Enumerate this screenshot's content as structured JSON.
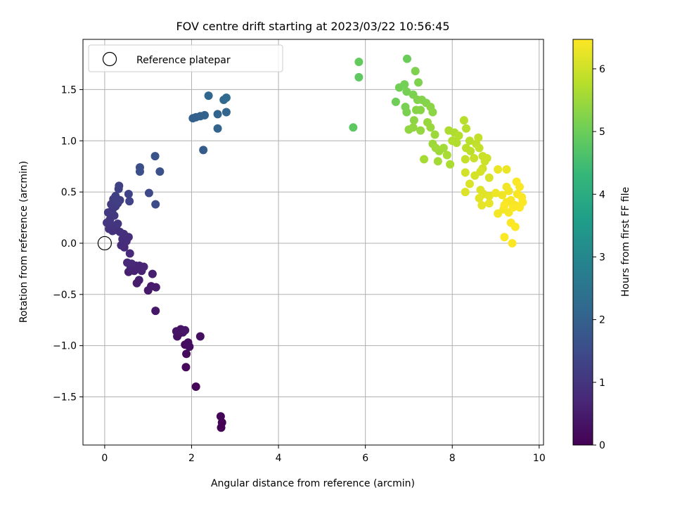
{
  "chart_data": {
    "type": "scatter",
    "title": "FOV centre drift starting at 2023/03/22 10:56:45",
    "xlabel": "Angular distance from reference (arcmin)",
    "ylabel": "Rotation from reference (arcmin)",
    "xlim": [
      -0.5,
      10.1
    ],
    "ylim": [
      -1.97,
      1.99
    ],
    "x_ticks": [
      0,
      2,
      4,
      6,
      8,
      10
    ],
    "y_ticks": [
      -1.5,
      -1.0,
      -0.5,
      0.0,
      0.5,
      1.0,
      1.5
    ],
    "x_tick_labels": [
      "0",
      "2",
      "4",
      "6",
      "8",
      "10"
    ],
    "y_tick_labels": [
      "−1.5",
      "−1.0",
      "−0.5",
      "0.0",
      "0.5",
      "1.0",
      "1.5"
    ],
    "grid": true,
    "legend": {
      "placement": "top-left",
      "entries": [
        {
          "label": "Reference platepar",
          "marker": "open-circle"
        }
      ]
    },
    "reference_point": {
      "x": 0.0,
      "y": 0.0
    },
    "colorbar": {
      "label": "Hours from first FF file",
      "colormap": "viridis",
      "min": 0.0,
      "max": 6.47,
      "ticks": [
        0,
        1,
        2,
        3,
        4,
        5,
        6
      ],
      "tick_labels": [
        "0",
        "1",
        "2",
        "3",
        "4",
        "5",
        "6"
      ]
    },
    "colormap_stops": [
      "#440154",
      "#482878",
      "#3e4989",
      "#31688e",
      "#26828e",
      "#1f9e89",
      "#35b779",
      "#6ece58",
      "#b5de2b",
      "#fde725"
    ],
    "grid_color": "#b0b0b0",
    "series": [
      {
        "points": [
          {
            "x": 2.68,
            "y": -1.8,
            "c": 0.02
          },
          {
            "x": 2.7,
            "y": -1.75,
            "c": 0.04
          },
          {
            "x": 2.67,
            "y": -1.69,
            "c": 0.06
          },
          {
            "x": 2.1,
            "y": -1.4,
            "c": 0.1
          },
          {
            "x": 1.87,
            "y": -1.21,
            "c": 0.13
          },
          {
            "x": 1.88,
            "y": -1.08,
            "c": 0.16
          },
          {
            "x": 1.85,
            "y": -0.99,
            "c": 0.19
          },
          {
            "x": 1.92,
            "y": -0.97,
            "c": 0.21
          },
          {
            "x": 1.95,
            "y": -1.01,
            "c": 0.23
          },
          {
            "x": 2.2,
            "y": -0.91,
            "c": 0.25
          },
          {
            "x": 1.67,
            "y": -0.91,
            "c": 0.27
          },
          {
            "x": 1.72,
            "y": -0.88,
            "c": 0.29
          },
          {
            "x": 1.8,
            "y": -0.87,
            "c": 0.31
          },
          {
            "x": 1.65,
            "y": -0.86,
            "c": 0.33
          },
          {
            "x": 1.75,
            "y": -0.84,
            "c": 0.35
          },
          {
            "x": 1.85,
            "y": -0.85,
            "c": 0.37
          },
          {
            "x": 1.17,
            "y": -0.66,
            "c": 0.42
          },
          {
            "x": 1.0,
            "y": -0.46,
            "c": 0.46
          },
          {
            "x": 1.07,
            "y": -0.42,
            "c": 0.48
          },
          {
            "x": 1.18,
            "y": -0.43,
            "c": 0.5
          },
          {
            "x": 0.74,
            "y": -0.39,
            "c": 0.52
          },
          {
            "x": 0.79,
            "y": -0.36,
            "c": 0.54
          },
          {
            "x": 1.1,
            "y": -0.3,
            "c": 0.56
          },
          {
            "x": 0.55,
            "y": -0.28,
            "c": 0.58
          },
          {
            "x": 0.68,
            "y": -0.27,
            "c": 0.6
          },
          {
            "x": 0.85,
            "y": -0.27,
            "c": 0.62
          },
          {
            "x": 0.6,
            "y": -0.24,
            "c": 0.64
          },
          {
            "x": 0.72,
            "y": -0.22,
            "c": 0.66
          },
          {
            "x": 0.8,
            "y": -0.22,
            "c": 0.68
          },
          {
            "x": 0.9,
            "y": -0.23,
            "c": 0.7
          },
          {
            "x": 0.52,
            "y": -0.19,
            "c": 0.72
          },
          {
            "x": 0.62,
            "y": -0.2,
            "c": 0.74
          },
          {
            "x": 0.58,
            "y": -0.1,
            "c": 0.76
          },
          {
            "x": 0.45,
            "y": -0.04,
            "c": 0.78
          },
          {
            "x": 0.38,
            "y": -0.02,
            "c": 0.8
          },
          {
            "x": 0.5,
            "y": 0.02,
            "c": 0.82
          },
          {
            "x": 0.41,
            "y": 0.04,
            "c": 0.84
          },
          {
            "x": 0.55,
            "y": 0.06,
            "c": 0.86
          },
          {
            "x": 0.44,
            "y": 0.09,
            "c": 0.88
          },
          {
            "x": 0.35,
            "y": 0.11,
            "c": 0.9
          },
          {
            "x": 0.28,
            "y": 0.13,
            "c": 0.92
          },
          {
            "x": 0.18,
            "y": 0.12,
            "c": 0.94
          },
          {
            "x": 0.1,
            "y": 0.14,
            "c": 0.96
          },
          {
            "x": 0.2,
            "y": 0.17,
            "c": 0.98
          },
          {
            "x": 0.3,
            "y": 0.19,
            "c": 1.0
          },
          {
            "x": 0.05,
            "y": 0.2,
            "c": 1.02
          },
          {
            "x": 0.12,
            "y": 0.23,
            "c": 1.04
          },
          {
            "x": 0.22,
            "y": 0.27,
            "c": 1.06
          },
          {
            "x": 0.08,
            "y": 0.3,
            "c": 1.08
          },
          {
            "x": 0.18,
            "y": 0.33,
            "c": 1.1
          },
          {
            "x": 0.25,
            "y": 0.36,
            "c": 1.12
          },
          {
            "x": 0.15,
            "y": 0.38,
            "c": 1.14
          },
          {
            "x": 0.3,
            "y": 0.39,
            "c": 1.16
          },
          {
            "x": 0.2,
            "y": 0.43,
            "c": 1.18
          },
          {
            "x": 0.35,
            "y": 0.42,
            "c": 1.2
          },
          {
            "x": 0.25,
            "y": 0.46,
            "c": 1.22
          },
          {
            "x": 0.32,
            "y": 0.53,
            "c": 1.24
          },
          {
            "x": 0.33,
            "y": 0.56,
            "c": 1.26
          },
          {
            "x": 0.55,
            "y": 0.48,
            "c": 1.3
          },
          {
            "x": 0.57,
            "y": 0.41,
            "c": 1.32
          },
          {
            "x": 1.02,
            "y": 0.49,
            "c": 1.46
          },
          {
            "x": 1.17,
            "y": 0.38,
            "c": 1.5
          },
          {
            "x": 0.81,
            "y": 0.74,
            "c": 1.56
          },
          {
            "x": 0.81,
            "y": 0.7,
            "c": 1.58
          },
          {
            "x": 1.27,
            "y": 0.7,
            "c": 1.62
          },
          {
            "x": 1.16,
            "y": 0.85,
            "c": 1.68
          },
          {
            "x": 2.27,
            "y": 0.91,
            "c": 1.88
          },
          {
            "x": 2.03,
            "y": 1.22,
            "c": 1.96
          },
          {
            "x": 2.1,
            "y": 1.23,
            "c": 1.98
          },
          {
            "x": 2.2,
            "y": 1.24,
            "c": 2.0
          },
          {
            "x": 2.3,
            "y": 1.25,
            "c": 2.02
          },
          {
            "x": 2.6,
            "y": 1.12,
            "c": 2.06
          },
          {
            "x": 2.6,
            "y": 1.26,
            "c": 2.08
          },
          {
            "x": 2.8,
            "y": 1.28,
            "c": 2.1
          },
          {
            "x": 2.39,
            "y": 1.44,
            "c": 2.14
          },
          {
            "x": 2.74,
            "y": 1.4,
            "c": 2.18
          },
          {
            "x": 2.8,
            "y": 1.42,
            "c": 2.2
          },
          {
            "x": 5.72,
            "y": 1.13,
            "c": 4.82
          },
          {
            "x": 5.85,
            "y": 1.62,
            "c": 4.86
          },
          {
            "x": 5.85,
            "y": 1.77,
            "c": 4.9
          },
          {
            "x": 6.96,
            "y": 1.8,
            "c": 5.0
          },
          {
            "x": 6.7,
            "y": 1.38,
            "c": 5.04
          },
          {
            "x": 6.78,
            "y": 1.52,
            "c": 5.06
          },
          {
            "x": 6.9,
            "y": 1.55,
            "c": 5.08
          },
          {
            "x": 6.95,
            "y": 1.48,
            "c": 5.1
          },
          {
            "x": 6.92,
            "y": 1.33,
            "c": 5.12
          },
          {
            "x": 6.95,
            "y": 1.28,
            "c": 5.14
          },
          {
            "x": 7.1,
            "y": 1.45,
            "c": 5.16
          },
          {
            "x": 7.15,
            "y": 1.68,
            "c": 5.18
          },
          {
            "x": 7.22,
            "y": 1.57,
            "c": 5.2
          },
          {
            "x": 7.2,
            "y": 1.4,
            "c": 5.22
          },
          {
            "x": 7.3,
            "y": 1.4,
            "c": 5.24
          },
          {
            "x": 7.4,
            "y": 1.37,
            "c": 5.26
          },
          {
            "x": 7.17,
            "y": 1.3,
            "c": 5.28
          },
          {
            "x": 7.27,
            "y": 1.3,
            "c": 5.3
          },
          {
            "x": 7.5,
            "y": 1.33,
            "c": 5.32
          },
          {
            "x": 7.55,
            "y": 1.28,
            "c": 5.34
          },
          {
            "x": 7.12,
            "y": 1.2,
            "c": 5.36
          },
          {
            "x": 7.0,
            "y": 1.11,
            "c": 5.38
          },
          {
            "x": 7.1,
            "y": 1.13,
            "c": 5.4
          },
          {
            "x": 7.27,
            "y": 1.1,
            "c": 5.42
          },
          {
            "x": 7.43,
            "y": 1.18,
            "c": 5.44
          },
          {
            "x": 7.5,
            "y": 1.13,
            "c": 5.46
          },
          {
            "x": 7.6,
            "y": 1.06,
            "c": 5.48
          },
          {
            "x": 7.55,
            "y": 0.97,
            "c": 5.5
          },
          {
            "x": 7.7,
            "y": 0.9,
            "c": 5.52
          },
          {
            "x": 7.62,
            "y": 0.93,
            "c": 5.54
          },
          {
            "x": 7.8,
            "y": 0.93,
            "c": 5.56
          },
          {
            "x": 7.67,
            "y": 0.8,
            "c": 5.58
          },
          {
            "x": 7.35,
            "y": 0.82,
            "c": 5.6
          },
          {
            "x": 7.88,
            "y": 0.86,
            "c": 5.62
          },
          {
            "x": 7.95,
            "y": 0.77,
            "c": 5.64
          },
          {
            "x": 7.92,
            "y": 1.1,
            "c": 5.66
          },
          {
            "x": 8.05,
            "y": 1.08,
            "c": 5.68
          },
          {
            "x": 8.0,
            "y": 1.0,
            "c": 5.7
          },
          {
            "x": 8.1,
            "y": 0.98,
            "c": 5.72
          },
          {
            "x": 8.15,
            "y": 1.05,
            "c": 5.74
          },
          {
            "x": 8.32,
            "y": 1.12,
            "c": 5.76
          },
          {
            "x": 8.27,
            "y": 1.2,
            "c": 5.78
          },
          {
            "x": 8.4,
            "y": 1.0,
            "c": 5.8
          },
          {
            "x": 8.32,
            "y": 0.93,
            "c": 5.82
          },
          {
            "x": 8.42,
            "y": 0.9,
            "c": 5.84
          },
          {
            "x": 8.55,
            "y": 0.97,
            "c": 5.86
          },
          {
            "x": 8.6,
            "y": 1.03,
            "c": 5.88
          },
          {
            "x": 8.62,
            "y": 0.93,
            "c": 5.9
          },
          {
            "x": 8.3,
            "y": 0.82,
            "c": 5.92
          },
          {
            "x": 8.5,
            "y": 0.83,
            "c": 5.94
          },
          {
            "x": 8.7,
            "y": 0.85,
            "c": 5.96
          },
          {
            "x": 8.75,
            "y": 0.8,
            "c": 5.98
          },
          {
            "x": 8.8,
            "y": 0.83,
            "c": 6.0
          },
          {
            "x": 8.7,
            "y": 0.73,
            "c": 6.02
          },
          {
            "x": 8.3,
            "y": 0.69,
            "c": 6.04
          },
          {
            "x": 8.52,
            "y": 0.66,
            "c": 6.06
          },
          {
            "x": 8.65,
            "y": 0.7,
            "c": 6.08
          },
          {
            "x": 8.85,
            "y": 0.64,
            "c": 6.1
          },
          {
            "x": 8.4,
            "y": 0.58,
            "c": 6.12
          },
          {
            "x": 8.3,
            "y": 0.5,
            "c": 6.14
          },
          {
            "x": 8.65,
            "y": 0.52,
            "c": 6.16
          },
          {
            "x": 8.72,
            "y": 0.48,
            "c": 6.18
          },
          {
            "x": 8.62,
            "y": 0.44,
            "c": 6.2
          },
          {
            "x": 8.85,
            "y": 0.46,
            "c": 6.22
          },
          {
            "x": 8.68,
            "y": 0.37,
            "c": 6.24
          },
          {
            "x": 8.85,
            "y": 0.39,
            "c": 6.26
          },
          {
            "x": 9.05,
            "y": 0.72,
            "c": 6.28
          },
          {
            "x": 9.25,
            "y": 0.72,
            "c": 6.3
          },
          {
            "x": 9.0,
            "y": 0.49,
            "c": 6.32
          },
          {
            "x": 9.15,
            "y": 0.47,
            "c": 6.33
          },
          {
            "x": 9.25,
            "y": 0.55,
            "c": 6.34
          },
          {
            "x": 9.3,
            "y": 0.51,
            "c": 6.35
          },
          {
            "x": 9.05,
            "y": 0.29,
            "c": 6.36
          },
          {
            "x": 9.18,
            "y": 0.33,
            "c": 6.37
          },
          {
            "x": 9.25,
            "y": 0.4,
            "c": 6.38
          },
          {
            "x": 9.3,
            "y": 0.3,
            "c": 6.39
          },
          {
            "x": 9.35,
            "y": 0.42,
            "c": 6.4
          },
          {
            "x": 9.45,
            "y": 0.37,
            "c": 6.41
          },
          {
            "x": 9.5,
            "y": 0.48,
            "c": 6.42
          },
          {
            "x": 9.55,
            "y": 0.55,
            "c": 6.43
          },
          {
            "x": 9.48,
            "y": 0.6,
            "c": 6.43
          },
          {
            "x": 9.6,
            "y": 0.45,
            "c": 6.44
          },
          {
            "x": 9.62,
            "y": 0.4,
            "c": 6.44
          },
          {
            "x": 9.55,
            "y": 0.35,
            "c": 6.45
          },
          {
            "x": 9.4,
            "y": 0.35,
            "c": 6.45
          },
          {
            "x": 9.2,
            "y": 0.37,
            "c": 6.45
          },
          {
            "x": 9.35,
            "y": 0.2,
            "c": 6.46
          },
          {
            "x": 9.45,
            "y": 0.16,
            "c": 6.46
          },
          {
            "x": 9.2,
            "y": 0.06,
            "c": 6.46
          },
          {
            "x": 9.38,
            "y": 0.0,
            "c": 6.47
          }
        ]
      }
    ]
  }
}
